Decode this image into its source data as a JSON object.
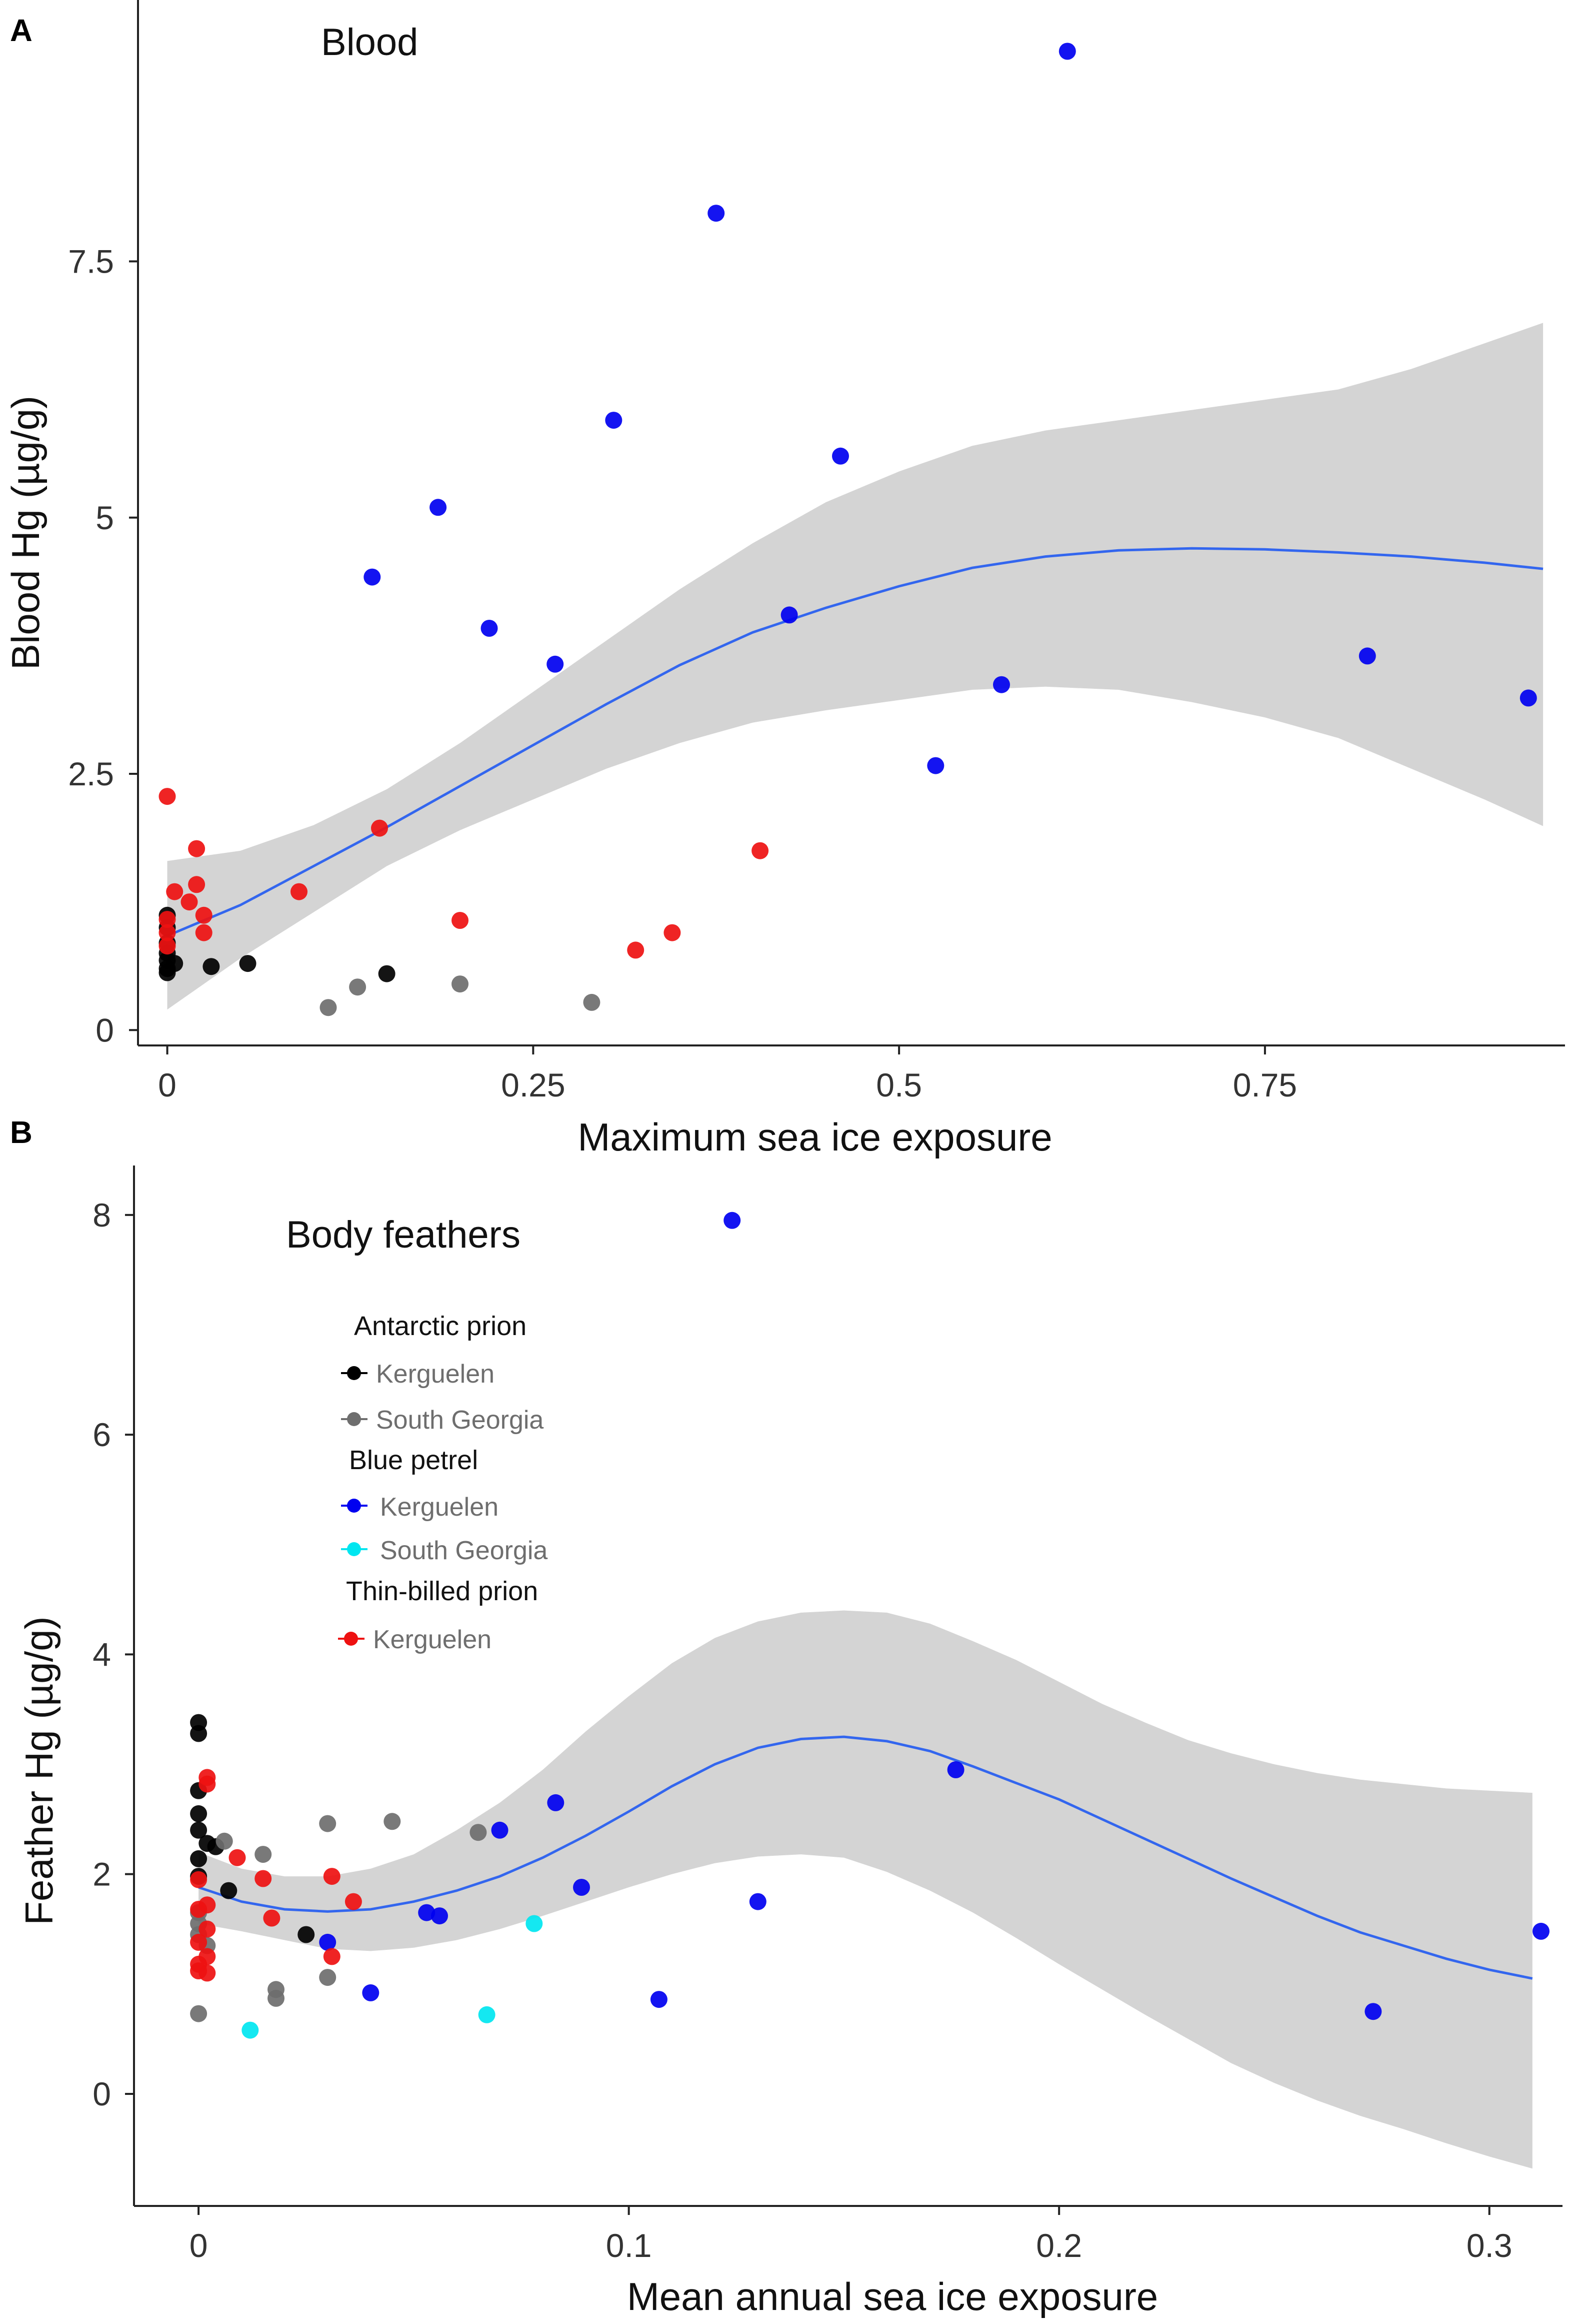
{
  "figure": {
    "panel_a_letter": "A",
    "panel_b_letter": "B"
  },
  "colors": {
    "antarctic_kerguelen": "#000000",
    "antarctic_south_georgia": "#6e6e6e",
    "blue_kerguelen": "#0000f0",
    "blue_south_georgia": "#00e6f0",
    "thin_kerguelen": "#ee1111",
    "fit_line": "#3366ee",
    "ribbon": "#d4d4d4"
  },
  "legend": {
    "groups": [
      {
        "title": "Antarctic prion",
        "items": [
          {
            "label": "Kerguelen",
            "color_key": "antarctic_kerguelen"
          },
          {
            "label": "South Georgia",
            "color_key": "antarctic_south_georgia"
          }
        ]
      },
      {
        "title": "Blue petrel",
        "items": [
          {
            "label": "Kerguelen",
            "color_key": "blue_kerguelen"
          },
          {
            "label": "South Georgia",
            "color_key": "blue_south_georgia"
          }
        ]
      },
      {
        "title": "Thin-billed prion",
        "items": [
          {
            "label": "Kerguelen",
            "color_key": "thin_kerguelen"
          }
        ]
      }
    ]
  },
  "chart_data": [
    {
      "type": "scatter",
      "panel": "A",
      "title": "Blood",
      "xlabel": "Maximum sea ice exposure",
      "ylabel": "Blood Hg (µg/g)",
      "xlim": [
        -0.02,
        0.955
      ],
      "ylim": [
        -0.15,
        10.05
      ],
      "xticks": [
        0,
        0.25,
        0.5,
        0.75
      ],
      "xtick_labels": [
        "0",
        "0.25",
        "0.5",
        "0.75"
      ],
      "yticks": [
        0,
        2.5,
        5,
        7.5
      ],
      "ytick_labels": [
        "0",
        "2.5",
        "5",
        "7.5"
      ],
      "smooth": {
        "x": [
          0,
          0.05,
          0.1,
          0.15,
          0.2,
          0.25,
          0.3,
          0.35,
          0.4,
          0.45,
          0.5,
          0.55,
          0.6,
          0.65,
          0.7,
          0.75,
          0.8,
          0.85,
          0.9,
          0.94
        ],
        "fit": [
          0.92,
          1.22,
          1.6,
          1.98,
          2.38,
          2.78,
          3.18,
          3.56,
          3.88,
          4.12,
          4.33,
          4.51,
          4.62,
          4.68,
          4.7,
          4.69,
          4.66,
          4.62,
          4.56,
          4.5
        ],
        "lower": [
          0.2,
          0.7,
          1.15,
          1.6,
          1.95,
          2.25,
          2.55,
          2.8,
          3.0,
          3.12,
          3.22,
          3.32,
          3.35,
          3.32,
          3.2,
          3.05,
          2.85,
          2.55,
          2.25,
          1.99
        ],
        "upper": [
          1.65,
          1.75,
          2.0,
          2.35,
          2.8,
          3.3,
          3.8,
          4.3,
          4.75,
          5.15,
          5.45,
          5.7,
          5.85,
          5.95,
          6.05,
          6.15,
          6.25,
          6.45,
          6.7,
          6.9
        ]
      },
      "series": [
        {
          "name": "Antarctic prion - Kerguelen",
          "color_key": "antarctic_kerguelen",
          "points": [
            [
              0.0,
              1.12
            ],
            [
              0.0,
              1.0
            ],
            [
              0.0,
              0.85
            ],
            [
              0.0,
              0.75
            ],
            [
              0.0,
              0.68
            ],
            [
              0.0,
              0.6
            ],
            [
              0.0,
              0.56
            ],
            [
              0.005,
              0.65
            ],
            [
              0.03,
              0.62
            ],
            [
              0.055,
              0.65
            ],
            [
              0.15,
              0.55
            ]
          ]
        },
        {
          "name": "Antarctic prion - South Georgia",
          "color_key": "antarctic_south_georgia",
          "points": [
            [
              0.11,
              0.22
            ],
            [
              0.13,
              0.42
            ],
            [
              0.2,
              0.45
            ],
            [
              0.29,
              0.27
            ]
          ]
        },
        {
          "name": "Blue petrel - Kerguelen",
          "color_key": "blue_kerguelen",
          "points": [
            [
              0.615,
              9.55
            ],
            [
              0.375,
              7.97
            ],
            [
              0.305,
              5.95
            ],
            [
              0.46,
              5.6
            ],
            [
              0.185,
              5.1
            ],
            [
              0.14,
              4.42
            ],
            [
              0.22,
              3.92
            ],
            [
              0.265,
              3.57
            ],
            [
              0.425,
              4.05
            ],
            [
              0.57,
              3.37
            ],
            [
              0.82,
              3.65
            ],
            [
              0.93,
              3.24
            ],
            [
              0.525,
              2.58
            ]
          ]
        },
        {
          "name": "Blue petrel - South Georgia",
          "color_key": "blue_south_georgia",
          "points": []
        },
        {
          "name": "Thin-billed prion - Kerguelen",
          "color_key": "thin_kerguelen",
          "points": [
            [
              0.0,
              2.28
            ],
            [
              0.02,
              1.77
            ],
            [
              0.02,
              1.42
            ],
            [
              0.005,
              1.35
            ],
            [
              0.015,
              1.25
            ],
            [
              0.025,
              1.12
            ],
            [
              0.0,
              1.08
            ],
            [
              0.0,
              0.95
            ],
            [
              0.0,
              0.82
            ],
            [
              0.025,
              0.95
            ],
            [
              0.145,
              1.97
            ],
            [
              0.09,
              1.35
            ],
            [
              0.2,
              1.07
            ],
            [
              0.32,
              0.78
            ],
            [
              0.345,
              0.95
            ],
            [
              0.405,
              1.75
            ]
          ]
        }
      ]
    },
    {
      "type": "scatter",
      "panel": "B",
      "title": "Body feathers",
      "xlabel": "Mean annual sea ice exposure",
      "ylabel": "Feather Hg (µg/g)",
      "xlim": [
        -0.015,
        0.317
      ],
      "ylim": [
        -1.02,
        8.45
      ],
      "xticks": [
        0,
        0.1,
        0.2,
        0.3
      ],
      "xtick_labels": [
        "0",
        "0.1",
        "0.2",
        "0.3"
      ],
      "yticks": [
        0,
        2,
        4,
        6,
        8
      ],
      "ytick_labels": [
        "0",
        "2",
        "4",
        "6",
        "8"
      ],
      "smooth": {
        "x": [
          0,
          0.01,
          0.02,
          0.03,
          0.04,
          0.05,
          0.06,
          0.07,
          0.08,
          0.09,
          0.1,
          0.11,
          0.12,
          0.13,
          0.14,
          0.15,
          0.16,
          0.17,
          0.18,
          0.19,
          0.2,
          0.21,
          0.22,
          0.23,
          0.24,
          0.25,
          0.26,
          0.27,
          0.28,
          0.29,
          0.3,
          0.31
        ],
        "fit": [
          1.88,
          1.75,
          1.68,
          1.66,
          1.68,
          1.75,
          1.85,
          1.98,
          2.15,
          2.35,
          2.57,
          2.8,
          3.0,
          3.15,
          3.23,
          3.25,
          3.21,
          3.12,
          2.98,
          2.83,
          2.68,
          2.5,
          2.32,
          2.14,
          1.96,
          1.79,
          1.62,
          1.47,
          1.35,
          1.23,
          1.13,
          1.05
        ],
        "lower": [
          1.55,
          1.48,
          1.4,
          1.32,
          1.3,
          1.33,
          1.4,
          1.5,
          1.62,
          1.75,
          1.88,
          2.0,
          2.1,
          2.16,
          2.18,
          2.15,
          2.02,
          1.85,
          1.65,
          1.42,
          1.18,
          0.95,
          0.72,
          0.5,
          0.28,
          0.1,
          -0.06,
          -0.2,
          -0.32,
          -0.45,
          -0.57,
          -0.68
        ],
        "upper": [
          2.2,
          2.05,
          1.98,
          1.98,
          2.05,
          2.18,
          2.4,
          2.65,
          2.95,
          3.3,
          3.62,
          3.92,
          4.15,
          4.3,
          4.38,
          4.4,
          4.38,
          4.28,
          4.12,
          3.95,
          3.75,
          3.55,
          3.38,
          3.22,
          3.1,
          3.0,
          2.92,
          2.86,
          2.82,
          2.78,
          2.76,
          2.74
        ]
      },
      "series": [
        {
          "name": "Antarctic prion - Kerguelen",
          "color_key": "antarctic_kerguelen",
          "points": [
            [
              0.0,
              3.38
            ],
            [
              0.0,
              3.28
            ],
            [
              0.0,
              2.76
            ],
            [
              0.0,
              2.55
            ],
            [
              0.0,
              2.4
            ],
            [
              0.0,
              2.14
            ],
            [
              0.0,
              1.98
            ],
            [
              0.002,
              2.28
            ],
            [
              0.004,
              2.25
            ],
            [
              0.007,
              1.85
            ],
            [
              0.025,
              1.45
            ]
          ]
        },
        {
          "name": "Antarctic prion - South Georgia",
          "color_key": "antarctic_south_georgia",
          "points": [
            [
              0.0,
              0.73
            ],
            [
              0.0,
              1.45
            ],
            [
              0.002,
              1.35
            ],
            [
              0.0,
              1.55
            ],
            [
              0.0,
              1.65
            ],
            [
              0.006,
              2.3
            ],
            [
              0.015,
              2.18
            ],
            [
              0.018,
              0.95
            ],
            [
              0.018,
              0.87
            ],
            [
              0.03,
              2.46
            ],
            [
              0.045,
              2.48
            ],
            [
              0.03,
              1.06
            ],
            [
              0.065,
              2.38
            ]
          ]
        },
        {
          "name": "Blue petrel - Kerguelen",
          "color_key": "blue_kerguelen",
          "points": [
            [
              0.124,
              7.95
            ],
            [
              0.176,
              2.95
            ],
            [
              0.083,
              2.65
            ],
            [
              0.07,
              2.4
            ],
            [
              0.089,
              1.88
            ],
            [
              0.13,
              1.75
            ],
            [
              0.053,
              1.65
            ],
            [
              0.056,
              1.62
            ],
            [
              0.03,
              1.38
            ],
            [
              0.04,
              0.92
            ],
            [
              0.107,
              0.86
            ],
            [
              0.273,
              0.75
            ],
            [
              0.312,
              1.48
            ]
          ]
        },
        {
          "name": "Blue petrel - South Georgia",
          "color_key": "blue_south_georgia",
          "points": [
            [
              0.078,
              1.55
            ],
            [
              0.012,
              0.58
            ],
            [
              0.067,
              0.72
            ]
          ]
        },
        {
          "name": "Thin-billed prion - Kerguelen",
          "color_key": "thin_kerguelen",
          "points": [
            [
              0.002,
              2.88
            ],
            [
              0.002,
              2.82
            ],
            [
              0.0,
              1.95
            ],
            [
              0.002,
              1.72
            ],
            [
              0.0,
              1.68
            ],
            [
              0.002,
              1.5
            ],
            [
              0.0,
              1.38
            ],
            [
              0.002,
              1.25
            ],
            [
              0.0,
              1.18
            ],
            [
              0.0,
              1.12
            ],
            [
              0.002,
              1.1
            ],
            [
              0.009,
              2.15
            ],
            [
              0.015,
              1.96
            ],
            [
              0.017,
              1.6
            ],
            [
              0.031,
              1.98
            ],
            [
              0.036,
              1.75
            ],
            [
              0.031,
              1.25
            ]
          ]
        }
      ]
    }
  ]
}
